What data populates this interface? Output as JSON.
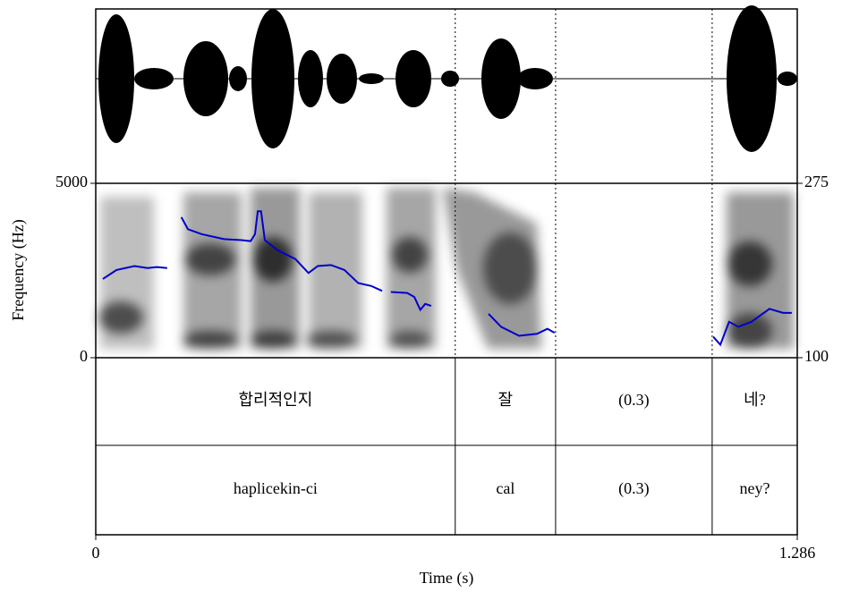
{
  "chart_data": {
    "type": "line",
    "x_label": "Time (s)",
    "y_label": "Frequency (Hz)",
    "xlim": [
      0,
      1.286
    ],
    "xticks": [
      0,
      1.286
    ],
    "ylim": [
      0,
      5000
    ],
    "yticks": [
      0,
      5000
    ],
    "y2lim": [
      100,
      275
    ],
    "y2ticks": [
      100,
      275
    ],
    "boundaries": [
      0.659,
      0.843,
      1.13
    ],
    "tiers": [
      [
        "합리적인지",
        "잘",
        "(0.3)",
        "네?"
      ],
      [
        "haplicekin-ci",
        "cal",
        "(0.3)",
        "ney?"
      ]
    ],
    "x": [
      0.013,
      0.038,
      0.071,
      0.095,
      0.112,
      0.131,
      null,
      0.157,
      0.169,
      0.194,
      0.235,
      0.267,
      0.284,
      0.292,
      0.297,
      0.303,
      0.31,
      0.333,
      0.366,
      0.39,
      0.407,
      0.431,
      0.456,
      0.481,
      0.505,
      0.525,
      null,
      0.541,
      0.571,
      0.584,
      0.595,
      0.604,
      0.615,
      null,
      0.72,
      0.743,
      0.776,
      0.809,
      0.828,
      0.841,
      null,
      1.132,
      1.145,
      1.161,
      1.178,
      1.202,
      1.235,
      1.26,
      1.276
    ],
    "series": [
      {
        "color": "#0000cc",
        "axis": "y2",
        "values": [
          179,
          188,
          192,
          190,
          191,
          190,
          null,
          241,
          229,
          224,
          219,
          218,
          217,
          224,
          247,
          247,
          218,
          208,
          199,
          185,
          192,
          193,
          188,
          175,
          172,
          167,
          null,
          166,
          165,
          161,
          148,
          154,
          152,
          null,
          144,
          131,
          122,
          124,
          129,
          125,
          null,
          121,
          113,
          136,
          131,
          136,
          149,
          145,
          145
        ]
      }
    ]
  }
}
